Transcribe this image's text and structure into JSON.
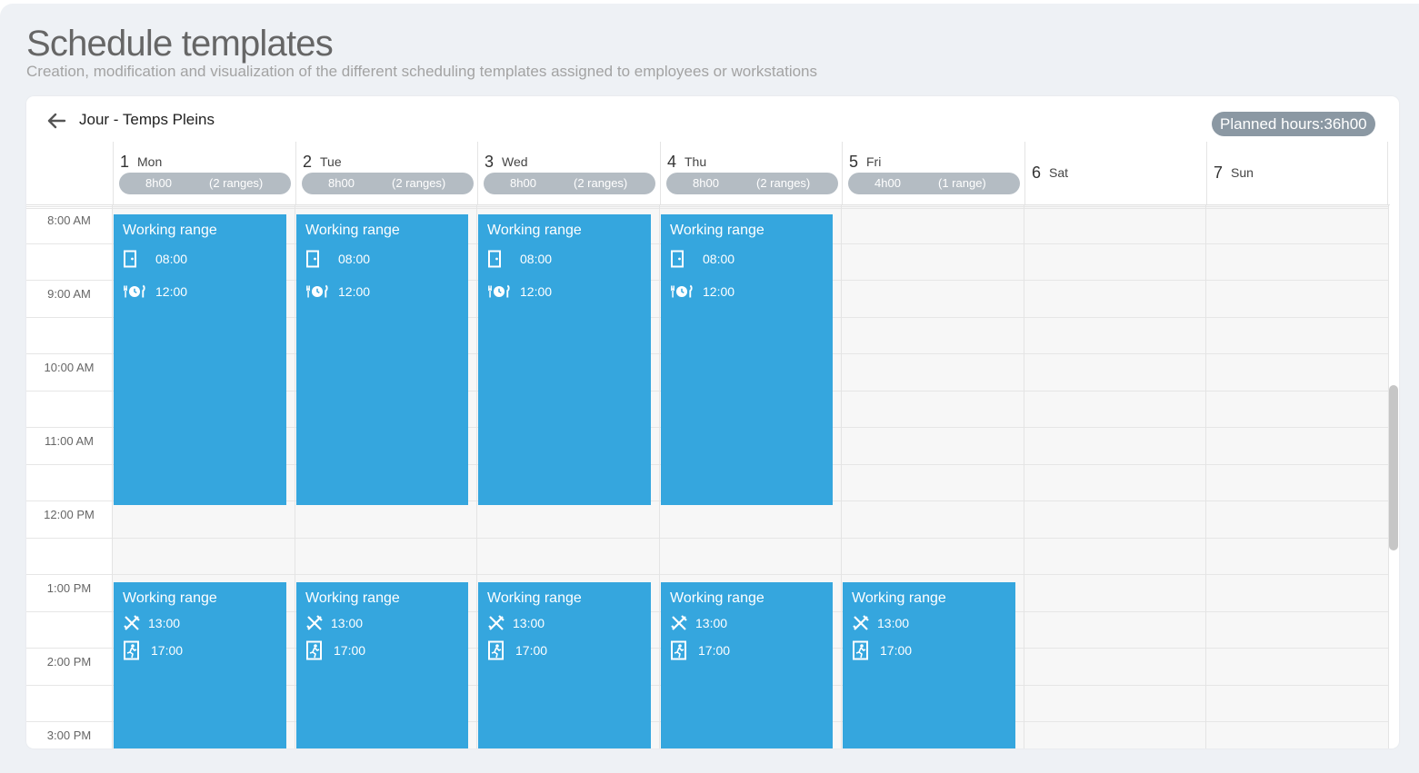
{
  "page": {
    "title": "Schedule templates",
    "subtitle": "Creation, modification and visualization of the different scheduling templates assigned to employees or workstations"
  },
  "template": {
    "name": "Jour - Temps Pleins",
    "planned_hours": "Planned hours:36h00"
  },
  "days": [
    {
      "num": "1",
      "name": "Mon",
      "hours": "8h00",
      "ranges": "(2 ranges)"
    },
    {
      "num": "2",
      "name": "Tue",
      "hours": "8h00",
      "ranges": "(2 ranges)"
    },
    {
      "num": "3",
      "name": "Wed",
      "hours": "8h00",
      "ranges": "(2 ranges)"
    },
    {
      "num": "4",
      "name": "Thu",
      "hours": "8h00",
      "ranges": "(2 ranges)"
    },
    {
      "num": "5",
      "name": "Fri",
      "hours": "4h00",
      "ranges": "(1 range)"
    },
    {
      "num": "6",
      "name": "Sat"
    },
    {
      "num": "7",
      "name": "Sun"
    }
  ],
  "time_labels": [
    "8:00 AM",
    "9:00 AM",
    "10:00 AM",
    "11:00 AM",
    "12:00 PM",
    "1:00 PM",
    "2:00 PM",
    "3:00 PM"
  ],
  "events": [
    {
      "day": 0,
      "title": "Working range",
      "start_label": "08:00",
      "end_label": "12:00",
      "start_icon": "door-entry-icon",
      "end_icon": "meal-clock-icon",
      "start": "08:00",
      "end": "12:00"
    },
    {
      "day": 1,
      "title": "Working range",
      "start_label": "08:00",
      "end_label": "12:00",
      "start_icon": "door-entry-icon",
      "end_icon": "meal-clock-icon",
      "start": "08:00",
      "end": "12:00"
    },
    {
      "day": 2,
      "title": "Working range",
      "start_label": "08:00",
      "end_label": "12:00",
      "start_icon": "door-entry-icon",
      "end_icon": "meal-clock-icon",
      "start": "08:00",
      "end": "12:00"
    },
    {
      "day": 3,
      "title": "Working range",
      "start_label": "08:00",
      "end_label": "12:00",
      "start_icon": "door-entry-icon",
      "end_icon": "meal-clock-icon",
      "start": "08:00",
      "end": "12:00"
    },
    {
      "day": 0,
      "title": "Working range",
      "start_label": "13:00",
      "end_label": "17:00",
      "start_icon": "fork-knife-icon",
      "end_icon": "exit-icon",
      "start": "13:00",
      "end": "17:00"
    },
    {
      "day": 1,
      "title": "Working range",
      "start_label": "13:00",
      "end_label": "17:00",
      "start_icon": "fork-knife-icon",
      "end_icon": "exit-icon",
      "start": "13:00",
      "end": "17:00"
    },
    {
      "day": 2,
      "title": "Working range",
      "start_label": "13:00",
      "end_label": "17:00",
      "start_icon": "fork-knife-icon",
      "end_icon": "exit-icon",
      "start": "13:00",
      "end": "17:00"
    },
    {
      "day": 3,
      "title": "Working range",
      "start_label": "13:00",
      "end_label": "17:00",
      "start_icon": "fork-knife-icon",
      "end_icon": "exit-icon",
      "start": "13:00",
      "end": "17:00"
    },
    {
      "day": 4,
      "title": "Working range",
      "start_label": "13:00",
      "end_label": "17:00",
      "start_icon": "fork-knife-icon",
      "end_icon": "exit-icon",
      "start": "13:00",
      "end": "17:00"
    }
  ],
  "colors": {
    "event": "#35a6de",
    "badge": "#8b98a3",
    "chip": "#b4bcc3"
  }
}
